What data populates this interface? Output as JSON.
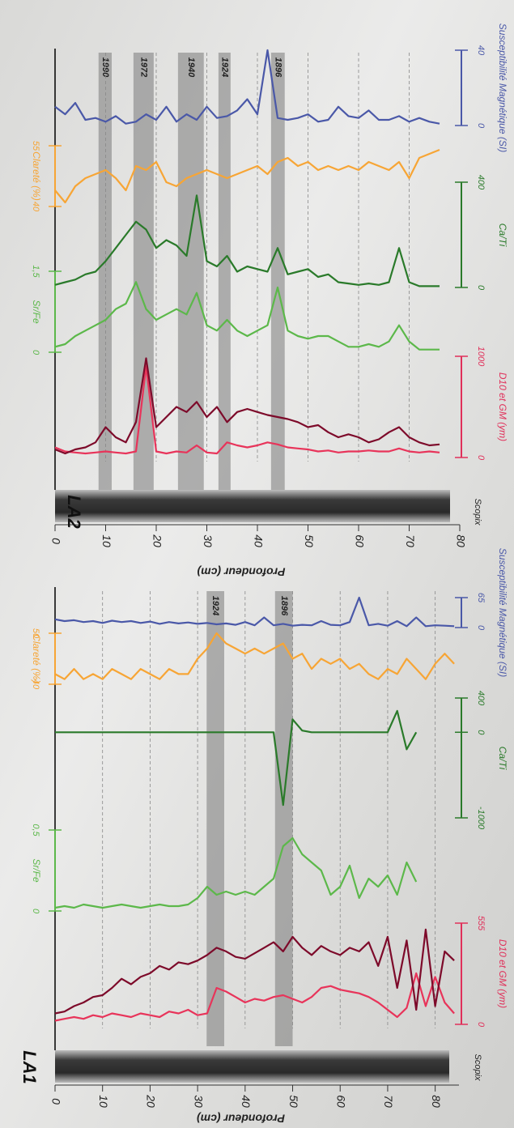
{
  "chart_data": [
    {
      "type": "line",
      "title": "LA2",
      "xlabel": "Profondeur (cm)",
      "core_label": "Scopix",
      "xlim": [
        0,
        80
      ],
      "xticks": [
        0,
        10,
        20,
        30,
        40,
        50,
        60,
        70,
        80
      ],
      "grid": true,
      "x": [
        0,
        2,
        4,
        6,
        8,
        10,
        12,
        14,
        16,
        18,
        20,
        22,
        24,
        26,
        28,
        30,
        32,
        34,
        36,
        38,
        40,
        42,
        44,
        46,
        48,
        50,
        52,
        54,
        56,
        58,
        60,
        62,
        64,
        66,
        68,
        70,
        72,
        74,
        76
      ],
      "events": [
        {
          "label": "1990",
          "from": 8.6,
          "to": 11.2
        },
        {
          "label": "1972",
          "from": 15.5,
          "to": 19.5
        },
        {
          "label": "1940",
          "from": 24.3,
          "to": 29.4
        },
        {
          "label": "1924",
          "from": 32.3,
          "to": 34.7
        },
        {
          "label": "1896",
          "from": 42.7,
          "to": 45.4
        }
      ],
      "tracks": [
        {
          "name": "D10 et GM (ym)",
          "color": "#e0305a",
          "side": "right",
          "ylim": [
            0,
            1000
          ],
          "yticks": [
            0,
            1000
          ],
          "series": [
            {
              "color": "#e8345a",
              "values": [
                100,
                60,
                50,
                40,
                50,
                60,
                50,
                40,
                60,
                900,
                60,
                40,
                60,
                50,
                120,
                50,
                40,
                150,
                120,
                100,
                120,
                150,
                130,
                100,
                90,
                80,
                60,
                70,
                50,
                60,
                60,
                70,
                60,
                60,
                90,
                60,
                50,
                60,
                50
              ]
            },
            {
              "color": "#7d0a2a",
              "values": [
                80,
                40,
                80,
                100,
                150,
                300,
                200,
                150,
                350,
                980,
                300,
                400,
                500,
                450,
                550,
                400,
                500,
                350,
                450,
                480,
                450,
                420,
                400,
                380,
                350,
                300,
                320,
                250,
                200,
                230,
                200,
                150,
                180,
                250,
                300,
                200,
                150,
                120,
                130
              ]
            }
          ]
        },
        {
          "name": "Sr/Fe",
          "color": "#5cb84a",
          "side": "left",
          "ylim": [
            0,
            1.5
          ],
          "yticks": [
            0,
            {
              "value": 1.5,
              "label": "1,5"
            }
          ],
          "series": [
            {
              "color": "#5cb84a",
              "values": [
                0.1,
                0.15,
                0.3,
                0.4,
                0.5,
                0.6,
                0.8,
                0.9,
                1.3,
                0.8,
                0.6,
                0.7,
                0.8,
                0.7,
                1.1,
                0.5,
                0.4,
                0.6,
                0.4,
                0.3,
                0.4,
                0.5,
                1.2,
                0.4,
                0.3,
                0.25,
                0.3,
                0.3,
                0.2,
                0.1,
                0.1,
                0.15,
                0.1,
                0.2,
                0.5,
                0.2,
                0.05,
                0.05,
                0.05
              ]
            }
          ]
        },
        {
          "name": "Ca/Ti",
          "color": "#2a7a2a",
          "side": "right",
          "ylim": [
            0,
            400
          ],
          "yticks": [
            0,
            400
          ],
          "series": [
            {
              "color": "#2a7a2a",
              "values": [
                10,
                20,
                30,
                50,
                60,
                100,
                150,
                200,
                250,
                220,
                150,
                180,
                160,
                120,
                350,
                100,
                80,
                120,
                60,
                80,
                70,
                60,
                150,
                50,
                60,
                70,
                40,
                50,
                20,
                15,
                10,
                15,
                10,
                20,
                150,
                20,
                5,
                5,
                5
              ]
            }
          ]
        },
        {
          "name": "Clareté (%)",
          "color": "#f7a535",
          "side": "left",
          "ylim": [
            40,
            55
          ],
          "yticks": [
            40,
            55
          ],
          "series": [
            {
              "color": "#f7a535",
              "values": [
                44,
                41,
                45,
                47,
                48,
                49,
                47,
                44,
                50,
                49,
                51,
                46,
                45,
                47,
                48,
                49,
                48,
                47,
                48,
                49,
                50,
                48,
                51,
                52,
                50,
                51,
                49,
                50,
                49,
                50,
                49,
                51,
                50,
                49,
                51,
                47,
                52,
                53,
                54
              ]
            }
          ]
        },
        {
          "name": "Susceptibilité Magnétique (SI)",
          "color": "#4a58a8",
          "side": "right",
          "ylim": [
            0,
            40
          ],
          "yticks": [
            0,
            40
          ],
          "series": [
            {
              "color": "#4a58a8",
              "values": [
                10,
                6,
                12,
                3,
                4,
                2,
                5,
                1,
                2,
                6,
                3,
                10,
                2,
                6,
                3,
                10,
                4,
                5,
                8,
                14,
                6,
                40,
                4,
                3,
                4,
                6,
                2,
                3,
                10,
                5,
                4,
                8,
                3,
                3,
                5,
                2,
                4,
                2,
                1
              ]
            }
          ]
        }
      ]
    },
    {
      "type": "line",
      "title": "LA1",
      "xlabel": "Profondeur (cm)",
      "core_label": "Scopix",
      "xlim": [
        0,
        85
      ],
      "xticks": [
        0,
        10,
        20,
        30,
        40,
        50,
        60,
        70,
        80
      ],
      "grid": true,
      "x": [
        0,
        2,
        4,
        6,
        8,
        10,
        12,
        14,
        16,
        18,
        20,
        22,
        24,
        26,
        28,
        30,
        32,
        34,
        36,
        38,
        40,
        42,
        44,
        46,
        48,
        50,
        52,
        54,
        56,
        58,
        60,
        62,
        64,
        66,
        68,
        70,
        72,
        74,
        76,
        78,
        80,
        82,
        84
      ],
      "events": [
        {
          "label": "1924",
          "from": 31.9,
          "to": 35.6
        },
        {
          "label": "1896",
          "from": 46.3,
          "to": 50
        }
      ],
      "tracks": [
        {
          "name": "D10 et GM (ym)",
          "color": "#e0305a",
          "side": "right",
          "ylim": [
            0,
            555
          ],
          "yticks": [
            0,
            555
          ],
          "series": [
            {
              "color": "#e8345a",
              "values": [
                20,
                30,
                40,
                30,
                50,
                40,
                60,
                50,
                40,
                60,
                50,
                40,
                70,
                60,
                80,
                50,
                60,
                200,
                180,
                150,
                120,
                140,
                130,
                150,
                160,
                140,
                120,
                150,
                200,
                210,
                190,
                180,
                170,
                150,
                120,
                80,
                40,
                90,
                280,
                100,
                260,
                120,
                60
              ]
            },
            {
              "color": "#7d0a2a",
              "values": [
                60,
                70,
                100,
                120,
                150,
                160,
                200,
                250,
                220,
                260,
                280,
                320,
                300,
                340,
                330,
                350,
                380,
                420,
                400,
                370,
                360,
                390,
                420,
                450,
                400,
                480,
                420,
                380,
                430,
                400,
                380,
                420,
                400,
                450,
                320,
                480,
                200,
                460,
                80,
                520,
                100,
                400,
                350
              ]
            }
          ]
        },
        {
          "name": "Sr/Fe",
          "color": "#5cb84a",
          "side": "left",
          "ylim": [
            0,
            0.5
          ],
          "yticks": [
            0,
            {
              "value": 0.5,
              "label": "0,5"
            }
          ],
          "series": [
            {
              "color": "#5cb84a",
              "values": [
                0.02,
                0.03,
                0.02,
                0.04,
                0.03,
                0.02,
                0.03,
                0.04,
                0.03,
                0.02,
                0.03,
                0.04,
                0.03,
                0.03,
                0.04,
                0.08,
                0.15,
                0.1,
                0.12,
                0.1,
                0.12,
                0.1,
                0.15,
                0.2,
                0.4,
                0.45,
                0.35,
                0.3,
                0.25,
                0.1,
                0.15,
                0.28,
                0.08,
                0.2,
                0.15,
                0.22,
                0.1,
                0.3,
                0.18,
                null,
                null,
                null,
                null
              ]
            }
          ]
        },
        {
          "name": "Ca/Ti",
          "color": "#2a7a2a",
          "side": "right",
          "ylim": [
            -1000,
            400
          ],
          "yticks": [
            -1000,
            0,
            400
          ],
          "series": [
            {
              "color": "#2a7a2a",
              "values": [
                0,
                0,
                0,
                0,
                0,
                0,
                0,
                0,
                0,
                0,
                0,
                0,
                0,
                0,
                0,
                0,
                0,
                0,
                0,
                0,
                0,
                0,
                0,
                0,
                -850,
                150,
                20,
                0,
                0,
                0,
                0,
                0,
                0,
                0,
                0,
                0,
                250,
                -200,
                0,
                null,
                null,
                null,
                null
              ]
            }
          ]
        },
        {
          "name": "Clareté (%)",
          "color": "#f7a535",
          "side": "left",
          "ylim": [
            40,
            50
          ],
          "yticks": [
            40,
            50
          ],
          "series": [
            {
              "color": "#f7a535",
              "values": [
                42,
                41,
                43,
                41,
                42,
                41,
                43,
                42,
                41,
                43,
                42,
                41,
                43,
                42,
                42,
                45,
                47,
                50,
                48,
                47,
                46,
                47,
                46,
                47,
                48,
                45,
                46,
                43,
                45,
                44,
                45,
                43,
                44,
                42,
                41,
                43,
                42,
                45,
                43,
                41,
                44,
                46,
                44
              ]
            }
          ]
        },
        {
          "name": "Susceptibilité Magnétique (SI)",
          "color": "#4a58a8",
          "side": "right",
          "ylim": [
            0,
            65
          ],
          "yticks": [
            0,
            65
          ],
          "series": [
            {
              "color": "#4a58a8",
              "values": [
                18,
                14,
                16,
                12,
                14,
                10,
                15,
                12,
                14,
                10,
                13,
                8,
                12,
                9,
                11,
                8,
                10,
                7,
                9,
                6,
                12,
                5,
                22,
                5,
                8,
                4,
                6,
                5,
                14,
                6,
                5,
                12,
                65,
                5,
                8,
                4,
                14,
                3,
                22,
                3,
                5,
                4,
                3
              ]
            }
          ]
        }
      ]
    }
  ]
}
